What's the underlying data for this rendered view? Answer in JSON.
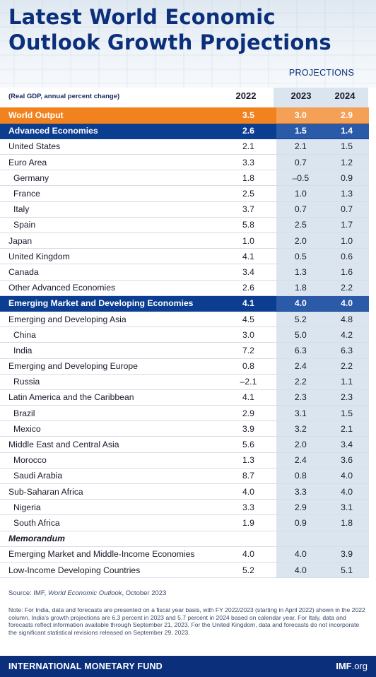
{
  "header": {
    "title_line1": "Latest World Economic",
    "title_line2": "Outlook Growth Projections",
    "projections_label": "PROJECTIONS"
  },
  "subheader": {
    "note": "(Real GDP, annual percent change)"
  },
  "colors": {
    "title": "#0b2f7a",
    "world_output_row": "#f2821e",
    "group_band_row": "#0b3d91",
    "projection_column_shade": "#dbe5f0",
    "footer": "#0b2f7a"
  },
  "chart_data": {
    "type": "table",
    "columns": [
      "2022",
      "2023",
      "2024"
    ],
    "projection_columns": [
      "2023",
      "2024"
    ],
    "rows": [
      {
        "name": "World Output",
        "values": [
          "3.5",
          "3.0",
          "2.9"
        ],
        "style": "world"
      },
      {
        "name": "Advanced Economies",
        "values": [
          "2.6",
          "1.5",
          "1.4"
        ],
        "style": "band"
      },
      {
        "name": "United States",
        "values": [
          "2.1",
          "2.1",
          "1.5"
        ],
        "style": "normal"
      },
      {
        "name": "Euro Area",
        "values": [
          "3.3",
          "0.7",
          "1.2"
        ],
        "style": "normal"
      },
      {
        "name": "Germany",
        "values": [
          "1.8",
          "–0.5",
          "0.9"
        ],
        "style": "indent"
      },
      {
        "name": "France",
        "values": [
          "2.5",
          "1.0",
          "1.3"
        ],
        "style": "indent"
      },
      {
        "name": "Italy",
        "values": [
          "3.7",
          "0.7",
          "0.7"
        ],
        "style": "indent"
      },
      {
        "name": "Spain",
        "values": [
          "5.8",
          "2.5",
          "1.7"
        ],
        "style": "indent"
      },
      {
        "name": "Japan",
        "values": [
          "1.0",
          "2.0",
          "1.0"
        ],
        "style": "normal"
      },
      {
        "name": "United Kingdom",
        "values": [
          "4.1",
          "0.5",
          "0.6"
        ],
        "style": "normal"
      },
      {
        "name": "Canada",
        "values": [
          "3.4",
          "1.3",
          "1.6"
        ],
        "style": "normal"
      },
      {
        "name": "Other Advanced Economies",
        "values": [
          "2.6",
          "1.8",
          "2.2"
        ],
        "style": "normal"
      },
      {
        "name": "Emerging Market and Developing Economies",
        "values": [
          "4.1",
          "4.0",
          "4.0"
        ],
        "style": "band"
      },
      {
        "name": "Emerging and Developing Asia",
        "values": [
          "4.5",
          "5.2",
          "4.8"
        ],
        "style": "normal"
      },
      {
        "name": "China",
        "values": [
          "3.0",
          "5.0",
          "4.2"
        ],
        "style": "indent"
      },
      {
        "name": "India",
        "values": [
          "7.2",
          "6.3",
          "6.3"
        ],
        "style": "indent"
      },
      {
        "name": "Emerging and Developing Europe",
        "values": [
          "0.8",
          "2.4",
          "2.2"
        ],
        "style": "normal"
      },
      {
        "name": "Russia",
        "values": [
          "–2.1",
          "2.2",
          "1.1"
        ],
        "style": "indent"
      },
      {
        "name": "Latin America and the Caribbean",
        "values": [
          "4.1",
          "2.3",
          "2.3"
        ],
        "style": "normal"
      },
      {
        "name": "Brazil",
        "values": [
          "2.9",
          "3.1",
          "1.5"
        ],
        "style": "indent"
      },
      {
        "name": "Mexico",
        "values": [
          "3.9",
          "3.2",
          "2.1"
        ],
        "style": "indent"
      },
      {
        "name": "Middle East and Central Asia",
        "values": [
          "5.6",
          "2.0",
          "3.4"
        ],
        "style": "normal"
      },
      {
        "name": "Morocco",
        "values": [
          "1.3",
          "2.4",
          "3.6"
        ],
        "style": "indent"
      },
      {
        "name": "Saudi Arabia",
        "values": [
          "8.7",
          "0.8",
          "4.0"
        ],
        "style": "indent"
      },
      {
        "name": "Sub-Saharan Africa",
        "values": [
          "4.0",
          "3.3",
          "4.0"
        ],
        "style": "normal"
      },
      {
        "name": "Nigeria",
        "values": [
          "3.3",
          "2.9",
          "3.1"
        ],
        "style": "indent"
      },
      {
        "name": "South Africa",
        "values": [
          "1.9",
          "0.9",
          "1.8"
        ],
        "style": "indent"
      },
      {
        "name": "Memorandum",
        "values": [
          "",
          "",
          ""
        ],
        "style": "memo"
      },
      {
        "name": "Emerging Market and Middle-Income Economies",
        "values": [
          "4.0",
          "4.0",
          "3.9"
        ],
        "style": "normal"
      },
      {
        "name": "Low-Income Developing Countries",
        "values": [
          "5.2",
          "4.0",
          "5.1"
        ],
        "style": "normal"
      }
    ]
  },
  "source": {
    "prefix": "Source: IMF, ",
    "publication": "World Economic Outlook",
    "suffix": ", October 2023"
  },
  "note": "Note: For India, data and forecasts are presented on a fiscal year basis, with FY 2022/2023 (starting in April 2022) shown in the 2022 column. India's growth projections are 6.3 percent in 2023 and 5.7 percent in 2024 based on calendar year. For Italy, data and forecasts reflect information available through September 21, 2023. For the United Kingdom, data and forecasts do not incorporate the significant statistical revisions released on September 29, 2023.",
  "footer": {
    "organization": "INTERNATIONAL MONETARY FUND",
    "website_bold": "IMF",
    "website_rest": ".org"
  }
}
